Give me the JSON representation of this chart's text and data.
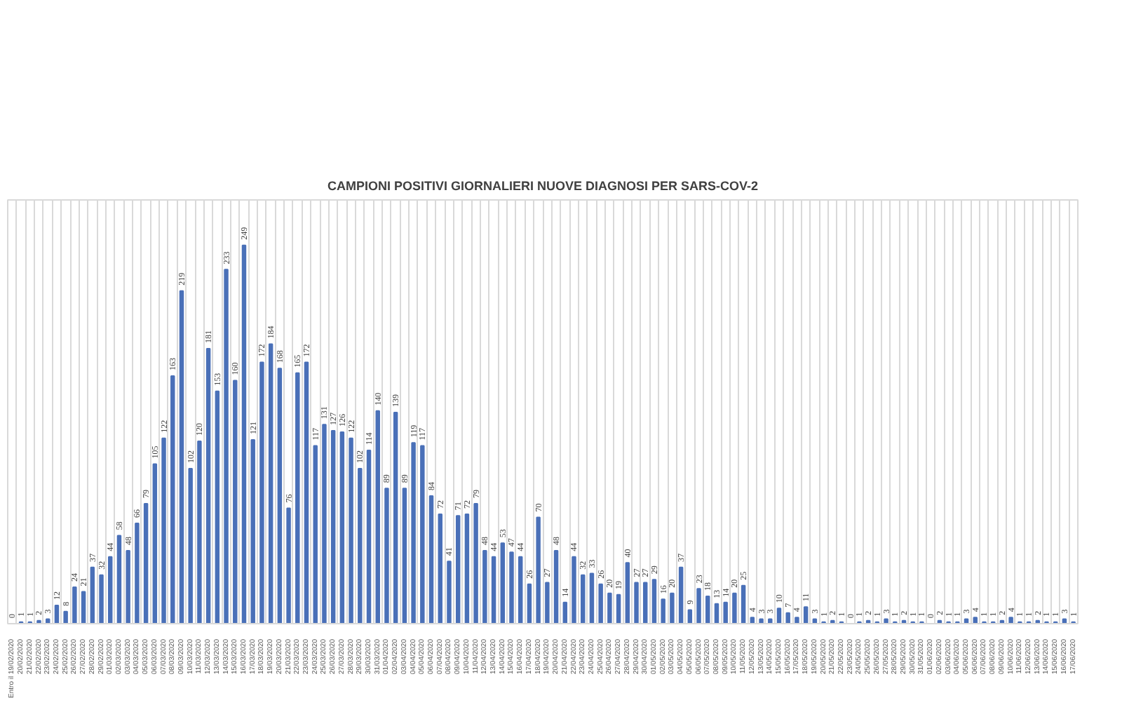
{
  "chart_data": {
    "type": "bar",
    "title": "CAMPIONI POSITIVI GIORNALIERI NUOVE DIAGNOSI PER SARS-COV-2",
    "categories": [
      "Entro il 19/02/2020",
      "20/02/2020",
      "21/02/2020",
      "22/02/2020",
      "23/02/2020",
      "24/02/2020",
      "25/02/2020",
      "26/02/2020",
      "27/02/2020",
      "28/02/2020",
      "29/02/2020",
      "01/03/2020",
      "02/03/2020",
      "03/03/2020",
      "04/03/2020",
      "05/03/2020",
      "06/03/2020",
      "07/03/2020",
      "08/03/2020",
      "09/03/2020",
      "10/03/2020",
      "11/03/2020",
      "12/03/2020",
      "13/03/2020",
      "14/03/2020",
      "15/03/2020",
      "16/03/2020",
      "17/03/2020",
      "18/03/2020",
      "19/03/2020",
      "20/03/2020",
      "21/03/2020",
      "22/03/2020",
      "23/03/2020",
      "24/03/2020",
      "25/03/2020",
      "26/03/2020",
      "27/03/2020",
      "28/03/2020",
      "29/03/2020",
      "30/03/2020",
      "31/03/2020",
      "01/04/2020",
      "02/04/2020",
      "03/04/2020",
      "04/04/2020",
      "05/04/2020",
      "06/04/2020",
      "07/04/2020",
      "08/04/2020",
      "09/04/2020",
      "10/04/2020",
      "11/04/2020",
      "12/04/2020",
      "13/04/2020",
      "14/04/2020",
      "15/04/2020",
      "16/04/2020",
      "17/04/2020",
      "18/04/2020",
      "19/04/2020",
      "20/04/2020",
      "21/04/2020",
      "22/04/2020",
      "23/04/2020",
      "24/04/2020",
      "25/04/2020",
      "26/04/2020",
      "27/04/2020",
      "28/04/2020",
      "29/04/2020",
      "30/04/2020",
      "01/05/2020",
      "02/05/2020",
      "03/05/2020",
      "04/05/2020",
      "05/05/2020",
      "06/05/2020",
      "07/05/2020",
      "08/05/2020",
      "09/05/2020",
      "10/05/2020",
      "11/05/2020",
      "12/05/2020",
      "13/05/2020",
      "14/05/2020",
      "15/05/2020",
      "16/05/2020",
      "17/05/2020",
      "18/05/2020",
      "19/05/2020",
      "20/05/2020",
      "21/05/2020",
      "22/05/2020",
      "23/05/2020",
      "24/05/2020",
      "25/05/2020",
      "26/05/2020",
      "27/05/2020",
      "28/05/2020",
      "29/05/2020",
      "30/05/2020",
      "31/05/2020",
      "01/06/2020",
      "02/06/2020",
      "03/06/2020",
      "04/06/2020",
      "05/06/2020",
      "06/06/2020",
      "07/06/2020",
      "08/06/2020",
      "09/06/2020",
      "10/06/2020",
      "11/06/2020",
      "12/06/2020",
      "13/06/2020",
      "14/06/2020",
      "15/06/2020",
      "16/06/2020",
      "17/06/2020"
    ],
    "values": [
      0,
      1,
      1,
      2,
      3,
      12,
      8,
      24,
      21,
      37,
      32,
      44,
      58,
      48,
      66,
      79,
      105,
      122,
      163,
      219,
      102,
      120,
      181,
      153,
      233,
      160,
      249,
      121,
      172,
      184,
      168,
      76,
      165,
      172,
      117,
      131,
      127,
      126,
      122,
      102,
      114,
      140,
      89,
      139,
      89,
      119,
      117,
      84,
      72,
      41,
      71,
      72,
      79,
      48,
      44,
      53,
      47,
      44,
      26,
      70,
      27,
      48,
      14,
      44,
      32,
      33,
      26,
      20,
      19,
      40,
      27,
      27,
      29,
      16,
      20,
      37,
      9,
      23,
      18,
      13,
      14,
      20,
      25,
      4,
      3,
      3,
      10,
      7,
      4,
      11,
      3,
      1,
      2,
      1,
      0,
      1,
      2,
      1,
      3,
      1,
      2,
      1,
      1,
      0,
      2,
      1,
      1,
      3,
      4,
      1,
      1,
      2,
      4,
      1,
      1,
      2,
      1,
      1,
      3,
      1
    ],
    "color": "#4a70b8",
    "data_labels": true,
    "grid": "x"
  }
}
